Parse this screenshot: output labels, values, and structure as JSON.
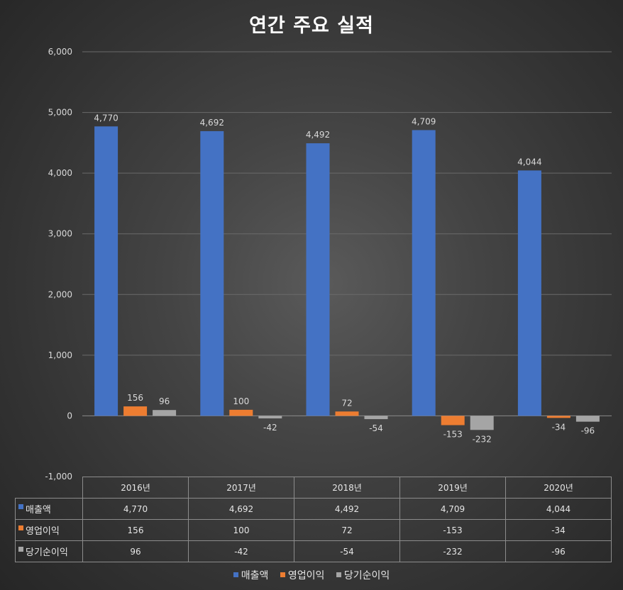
{
  "chart_data": {
    "type": "bar",
    "title": "연간 주요 실적",
    "categories": [
      "2016년",
      "2017년",
      "2018년",
      "2019년",
      "2020년"
    ],
    "series": [
      {
        "name": "매출액",
        "color": "#4472c4",
        "values": [
          4770,
          4692,
          4492,
          4709,
          4044
        ],
        "labels": [
          "4,770",
          "4,692",
          "4,492",
          "4,709",
          "4,044"
        ]
      },
      {
        "name": "영업이익",
        "color": "#ed7d31",
        "values": [
          156,
          100,
          72,
          -153,
          -34
        ],
        "labels": [
          "156",
          "100",
          "72",
          "-153",
          "-34"
        ]
      },
      {
        "name": "당기순이익",
        "color": "#a5a5a5",
        "values": [
          96,
          -42,
          -54,
          -232,
          -96
        ],
        "labels": [
          "96",
          "-42",
          "-54",
          "-232",
          "-96"
        ]
      }
    ],
    "ylim": [
      -1000,
      6000
    ],
    "yticks": [
      -1000,
      0,
      1000,
      2000,
      3000,
      4000,
      5000,
      6000
    ],
    "ytick_labels": [
      "-1,000",
      "0",
      "1,000",
      "2,000",
      "3,000",
      "4,000",
      "5,000",
      "6,000"
    ],
    "grid": true,
    "legend": "bottom",
    "data_table": true
  }
}
